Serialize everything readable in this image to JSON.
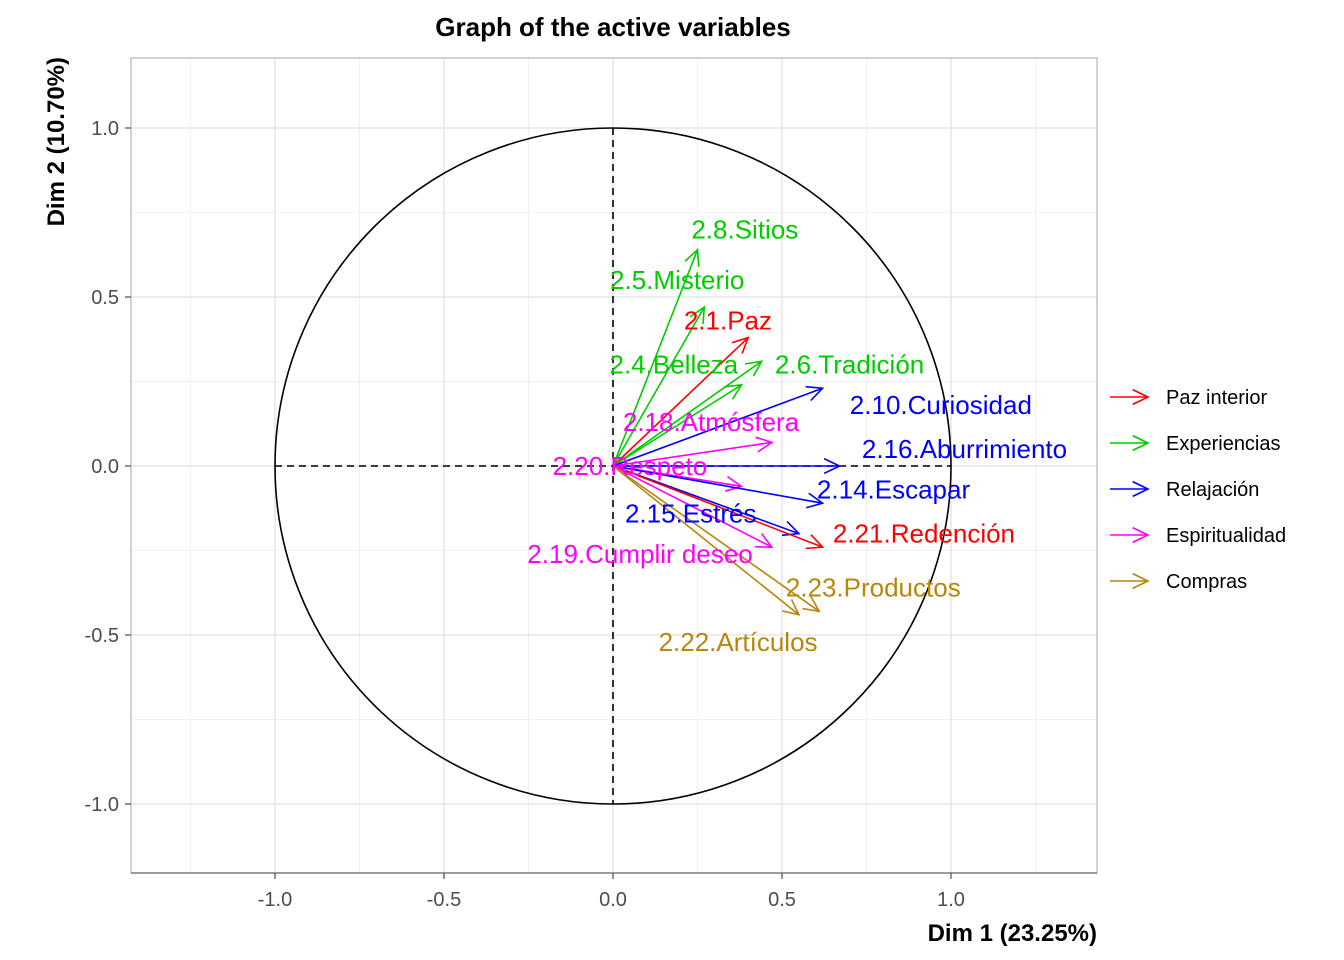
{
  "chart_data": {
    "type": "scatter",
    "subtype": "pca-variable-correlation-circle",
    "title": "Graph of the active variables",
    "xlabel": "Dim 1 (23.25%)",
    "ylabel": "Dim 2 (10.70%)",
    "xlim": [
      -1.43,
      1.43
    ],
    "ylim": [
      -1.2,
      1.2
    ],
    "xticks": [
      -1.0,
      -0.5,
      0.0,
      0.5,
      1.0
    ],
    "xtick_labels": [
      "-1.0",
      "-0.5",
      "0.0",
      "0.5",
      "1.0"
    ],
    "yticks": [
      -1.0,
      -0.5,
      0.0,
      0.5,
      1.0
    ],
    "ytick_labels": [
      "-1.0",
      "-0.5",
      "0.0",
      "0.5",
      "1.0"
    ],
    "grid": true,
    "unit_circle": true,
    "legend_position": "right",
    "groups": [
      {
        "name": "Paz interior",
        "color": "#ff0000"
      },
      {
        "name": "Experiencias",
        "color": "#00cd00"
      },
      {
        "name": "Relajación",
        "color": "#0000ff"
      },
      {
        "name": "Espiritualidad",
        "color": "#ff00ff"
      },
      {
        "name": "Compras",
        "color": "#b8860b"
      }
    ],
    "variables": [
      {
        "label": "2.8.Sitios",
        "group": "Experiencias",
        "x": 0.25,
        "y": 0.64,
        "label_x": 0.39,
        "label_y": 0.7
      },
      {
        "label": "2.5.Misterio",
        "group": "Experiencias",
        "x": 0.27,
        "y": 0.47,
        "label_x": 0.19,
        "label_y": 0.55
      },
      {
        "label": "2.1.Paz",
        "group": "Paz interior",
        "x": 0.4,
        "y": 0.38,
        "label_x": 0.34,
        "label_y": 0.43
      },
      {
        "label": "2.4.Belleza",
        "group": "Experiencias",
        "x": 0.38,
        "y": 0.24,
        "label_x": 0.18,
        "label_y": 0.3
      },
      {
        "label": "2.6.Tradición",
        "group": "Experiencias",
        "x": 0.44,
        "y": 0.31,
        "label_x": 0.7,
        "label_y": 0.3
      },
      {
        "label": "2.10.Curiosidad",
        "group": "Relajación",
        "x": 0.62,
        "y": 0.23,
        "label_x": 0.97,
        "label_y": 0.18
      },
      {
        "label": "2.18.Atmósfera",
        "group": "Espiritualidad",
        "x": 0.47,
        "y": 0.07,
        "label_x": 0.29,
        "label_y": 0.13
      },
      {
        "label": "2.16.Aburrimiento",
        "group": "Relajación",
        "x": 0.67,
        "y": 0.0,
        "label_x": 1.04,
        "label_y": 0.05
      },
      {
        "label": "2.20.Respeto",
        "group": "Espiritualidad",
        "x": 0.38,
        "y": -0.06,
        "label_x": 0.05,
        "label_y": 0.0
      },
      {
        "label": "2.14.Escapar",
        "group": "Relajación",
        "x": 0.62,
        "y": -0.11,
        "label_x": 0.83,
        "label_y": -0.07
      },
      {
        "label": "2.15.Estrés",
        "group": "Relajación",
        "x": 0.55,
        "y": -0.2,
        "label_x": 0.23,
        "label_y": -0.14
      },
      {
        "label": "2.21.Redención",
        "group": "Paz interior",
        "x": 0.62,
        "y": -0.24,
        "label_x": 0.92,
        "label_y": -0.2
      },
      {
        "label": "2.19.Cumplir deseo",
        "group": "Espiritualidad",
        "x": 0.47,
        "y": -0.24,
        "label_x": 0.08,
        "label_y": -0.26
      },
      {
        "label": "2.23.Productos",
        "group": "Compras",
        "x": 0.61,
        "y": -0.43,
        "label_x": 0.77,
        "label_y": -0.36
      },
      {
        "label": "2.22.Artículos",
        "group": "Compras",
        "x": 0.55,
        "y": -0.44,
        "label_x": 0.37,
        "label_y": -0.52
      }
    ]
  }
}
